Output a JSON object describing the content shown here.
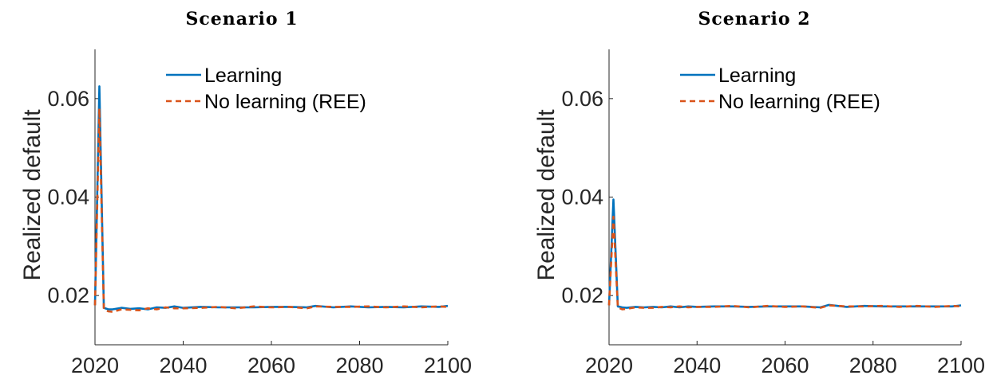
{
  "chart_data": [
    {
      "type": "line",
      "title": "Scenario 1",
      "xlabel": "",
      "ylabel": "Realized default",
      "xlim": [
        2020,
        2100
      ],
      "ylim": [
        0.01,
        0.07
      ],
      "xticks": [
        2020,
        2040,
        2060,
        2080,
        2100
      ],
      "xtick_labels": [
        "2020",
        "2040",
        "2060",
        "2080",
        "2100"
      ],
      "yticks": [
        0.02,
        0.04,
        0.06
      ],
      "ytick_labels": [
        "0.02",
        "0.04",
        "0.06"
      ],
      "grid": false,
      "legend_position": "top",
      "series": [
        {
          "name": "Learning",
          "color": "#0072BD",
          "style": "solid",
          "x": [
            2020,
            2021,
            2022,
            2023,
            2024,
            2026,
            2028,
            2030,
            2032,
            2034,
            2036,
            2038,
            2040,
            2044,
            2048,
            2052,
            2056,
            2060,
            2064,
            2068,
            2070,
            2074,
            2078,
            2082,
            2086,
            2090,
            2094,
            2098,
            2100
          ],
          "y": [
            0.018,
            0.0625,
            0.0175,
            0.0172,
            0.0172,
            0.0175,
            0.0173,
            0.0174,
            0.0172,
            0.0176,
            0.0175,
            0.0178,
            0.0175,
            0.0177,
            0.0176,
            0.0176,
            0.0176,
            0.0177,
            0.0177,
            0.0176,
            0.0179,
            0.0176,
            0.0178,
            0.0176,
            0.0177,
            0.0176,
            0.0178,
            0.0177,
            0.0179
          ]
        },
        {
          "name": "No learning (REE)",
          "color": "#D95319",
          "style": "dashed",
          "x": [
            2020,
            2021,
            2022,
            2023,
            2024,
            2026,
            2028,
            2030,
            2032,
            2034,
            2036,
            2038,
            2040,
            2044,
            2048,
            2052,
            2056,
            2060,
            2064,
            2068,
            2070,
            2074,
            2078,
            2082,
            2086,
            2090,
            2094,
            2098,
            2100
          ],
          "y": [
            0.018,
            0.058,
            0.0172,
            0.0168,
            0.0167,
            0.0172,
            0.0171,
            0.017,
            0.0174,
            0.0172,
            0.0176,
            0.0174,
            0.0174,
            0.0175,
            0.0177,
            0.0174,
            0.0178,
            0.0176,
            0.0177,
            0.0174,
            0.0178,
            0.0177,
            0.0177,
            0.0178,
            0.0176,
            0.0178,
            0.0176,
            0.0178,
            0.0177
          ]
        }
      ]
    },
    {
      "type": "line",
      "title": "Scenario 2",
      "xlabel": "",
      "ylabel": "Realized default",
      "xlim": [
        2020,
        2100
      ],
      "ylim": [
        0.01,
        0.07
      ],
      "xticks": [
        2020,
        2040,
        2060,
        2080,
        2100
      ],
      "xtick_labels": [
        "2020",
        "2040",
        "2060",
        "2080",
        "2100"
      ],
      "yticks": [
        0.02,
        0.04,
        0.06
      ],
      "ytick_labels": [
        "0.02",
        "0.04",
        "0.06"
      ],
      "grid": false,
      "legend_position": "top",
      "series": [
        {
          "name": "Learning",
          "color": "#0072BD",
          "style": "solid",
          "x": [
            2020,
            2021,
            2022,
            2023,
            2024,
            2026,
            2028,
            2030,
            2032,
            2034,
            2036,
            2038,
            2040,
            2044,
            2048,
            2052,
            2056,
            2060,
            2064,
            2068,
            2070,
            2074,
            2078,
            2082,
            2086,
            2090,
            2094,
            2098,
            2100
          ],
          "y": [
            0.018,
            0.0395,
            0.0178,
            0.0176,
            0.0175,
            0.0177,
            0.0176,
            0.0177,
            0.0176,
            0.0178,
            0.0176,
            0.0178,
            0.0177,
            0.0178,
            0.0178,
            0.0177,
            0.0178,
            0.0178,
            0.0178,
            0.0176,
            0.0181,
            0.0177,
            0.0179,
            0.0178,
            0.0178,
            0.0178,
            0.0178,
            0.0178,
            0.018
          ]
        },
        {
          "name": "No learning (REE)",
          "color": "#D95319",
          "style": "dashed",
          "x": [
            2020,
            2021,
            2022,
            2023,
            2024,
            2026,
            2028,
            2030,
            2032,
            2034,
            2036,
            2038,
            2040,
            2044,
            2048,
            2052,
            2056,
            2060,
            2064,
            2068,
            2070,
            2074,
            2078,
            2082,
            2086,
            2090,
            2094,
            2098,
            2100
          ],
          "y": [
            0.018,
            0.036,
            0.0176,
            0.0172,
            0.0173,
            0.0176,
            0.0175,
            0.0175,
            0.0177,
            0.0176,
            0.0178,
            0.0176,
            0.0177,
            0.0177,
            0.0179,
            0.0176,
            0.0179,
            0.0177,
            0.0178,
            0.0175,
            0.018,
            0.0178,
            0.0178,
            0.0179,
            0.0177,
            0.0179,
            0.0177,
            0.0179,
            0.0178
          ]
        }
      ]
    }
  ]
}
